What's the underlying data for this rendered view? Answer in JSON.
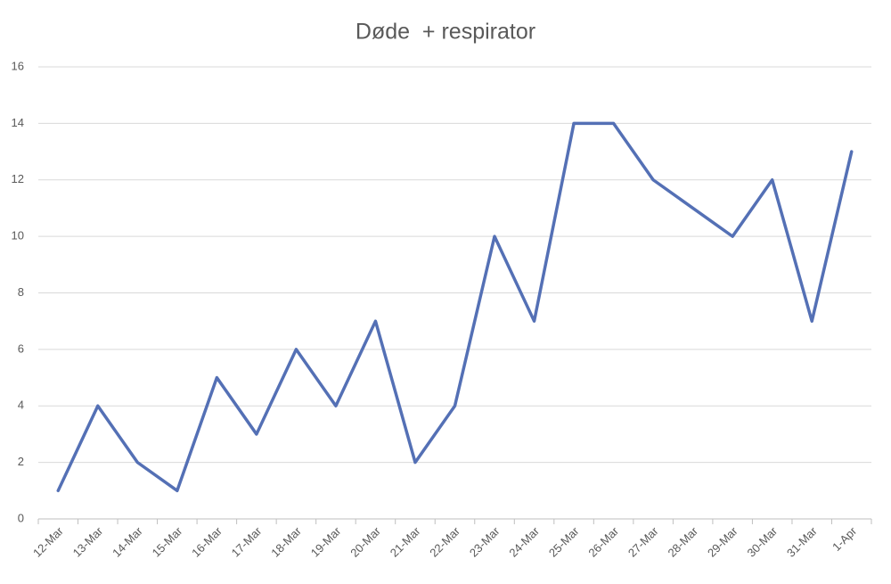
{
  "chart_data": {
    "type": "line",
    "title": "Døde  + respirator",
    "categories": [
      "12-Mar",
      "13-Mar",
      "14-Mar",
      "15-Mar",
      "16-Mar",
      "17-Mar",
      "18-Mar",
      "19-Mar",
      "20-Mar",
      "21-Mar",
      "22-Mar",
      "23-Mar",
      "24-Mar",
      "25-Mar",
      "26-Mar",
      "27-Mar",
      "28-Mar",
      "29-Mar",
      "30-Mar",
      "31-Mar",
      "1-Apr"
    ],
    "values": [
      1,
      4,
      2,
      1,
      5,
      3,
      6,
      4,
      7,
      2,
      4,
      10,
      7,
      14,
      14,
      12,
      11,
      10,
      12,
      7,
      13
    ],
    "color": "#5470b5",
    "ylim": [
      0,
      16
    ],
    "yticks": [
      0,
      2,
      4,
      6,
      8,
      10,
      12,
      14,
      16
    ],
    "grid": true
  }
}
